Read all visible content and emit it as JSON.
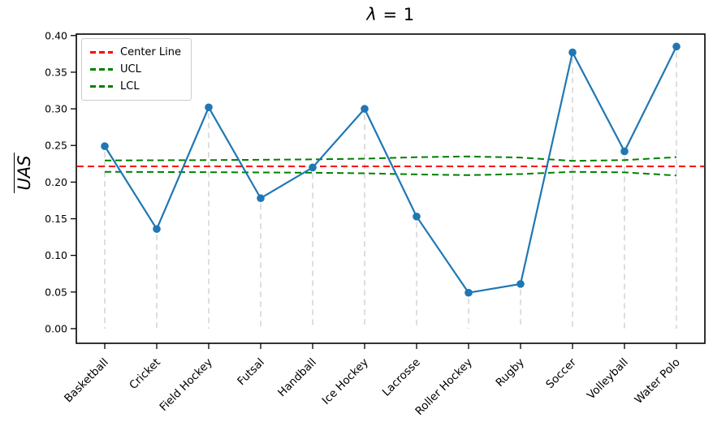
{
  "figure": {
    "title": {
      "symbol": "λ",
      "rest": " = 1",
      "full": "λ = 1"
    },
    "ylabel": "UAS"
  },
  "legend": {
    "position": "upper left",
    "items": [
      {
        "label": "Center Line",
        "color": "#ff0000"
      },
      {
        "label": "UCL",
        "color": "#008000"
      },
      {
        "label": "LCL",
        "color": "#008000"
      }
    ]
  },
  "chart_data": {
    "type": "line",
    "title": "λ = 1",
    "xlabel": "",
    "ylabel": "UAS",
    "categories": [
      "Basketball",
      "Cricket",
      "Field Hockey",
      "Futsal",
      "Handball",
      "Ice Hockey",
      "Lacrosse",
      "Roller Hockey",
      "Rugby",
      "Soccer",
      "Volleyball",
      "Water Polo"
    ],
    "series": [
      {
        "name": "UAS",
        "color": "#1f77b4",
        "style": "solid-with-markers",
        "values": [
          0.249,
          0.136,
          0.302,
          0.178,
          0.22,
          0.3,
          0.153,
          0.049,
          0.061,
          0.377,
          0.242,
          0.385
        ]
      },
      {
        "name": "UCL",
        "color": "#008000",
        "style": "dashed",
        "values": [
          0.2295,
          0.2298,
          0.23,
          0.2305,
          0.231,
          0.232,
          0.234,
          0.235,
          0.2335,
          0.229,
          0.23,
          0.234
        ]
      },
      {
        "name": "LCL",
        "color": "#008000",
        "style": "dashed",
        "values": [
          0.214,
          0.2138,
          0.2135,
          0.2132,
          0.2128,
          0.212,
          0.2105,
          0.2095,
          0.211,
          0.214,
          0.2133,
          0.209
        ]
      }
    ],
    "center_line": {
      "name": "Center Line",
      "color": "#ff0000",
      "style": "dashed",
      "value": 0.2215
    },
    "yticks": [
      "0.00",
      "0.05",
      "0.10",
      "0.15",
      "0.20",
      "0.25",
      "0.30",
      "0.35",
      "0.40"
    ],
    "ylim": [
      -0.02,
      0.402
    ],
    "grid": "vertical light-gray dashed stems from each data point down to y=0",
    "stem_color": "#d9d9d9",
    "legend_position": "upper left"
  }
}
